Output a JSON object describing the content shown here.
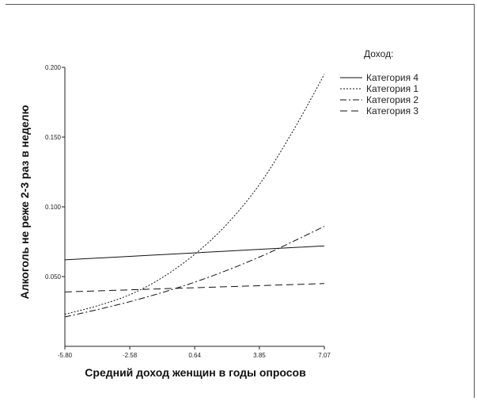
{
  "chart_data": {
    "type": "line",
    "xlabel": "Средний доход женщин в  годы опросов",
    "ylabel": "Алкоголь не реже 2-3 раз в неделю",
    "xlim": [
      -5.8,
      7.07
    ],
    "ylim": [
      0.0,
      0.2
    ],
    "x_ticks": [
      "-5.80",
      "-2.58",
      "0.64",
      "3.85",
      "7.07"
    ],
    "y_ticks": [
      "0.050",
      "0.100",
      "0.150",
      "0.200"
    ],
    "legend_title": "Доход:",
    "legend_position": "top-right",
    "grid": false,
    "series": [
      {
        "name": "Категория 4",
        "dash": "solid",
        "x": [
          -5.8,
          -2.58,
          0.64,
          3.85,
          7.07
        ],
        "y": [
          0.062,
          0.0645,
          0.067,
          0.0695,
          0.072
        ]
      },
      {
        "name": "Категория 1",
        "dash": "dotted",
        "x": [
          -5.8,
          -4.2,
          -2.58,
          -1.0,
          0.64,
          2.2,
          3.85,
          5.5,
          7.07
        ],
        "y": [
          0.023,
          0.029,
          0.037,
          0.049,
          0.066,
          0.087,
          0.116,
          0.154,
          0.195
        ]
      },
      {
        "name": "Категория 2",
        "dash": "dashdot",
        "x": [
          -5.8,
          -2.58,
          0.64,
          3.85,
          7.07
        ],
        "y": [
          0.021,
          0.032,
          0.046,
          0.064,
          0.086
        ]
      },
      {
        "name": "Категория 3",
        "dash": "dashed",
        "x": [
          -5.8,
          -2.58,
          0.64,
          3.85,
          7.07
        ],
        "y": [
          0.039,
          0.0405,
          0.042,
          0.0435,
          0.045
        ]
      }
    ]
  }
}
